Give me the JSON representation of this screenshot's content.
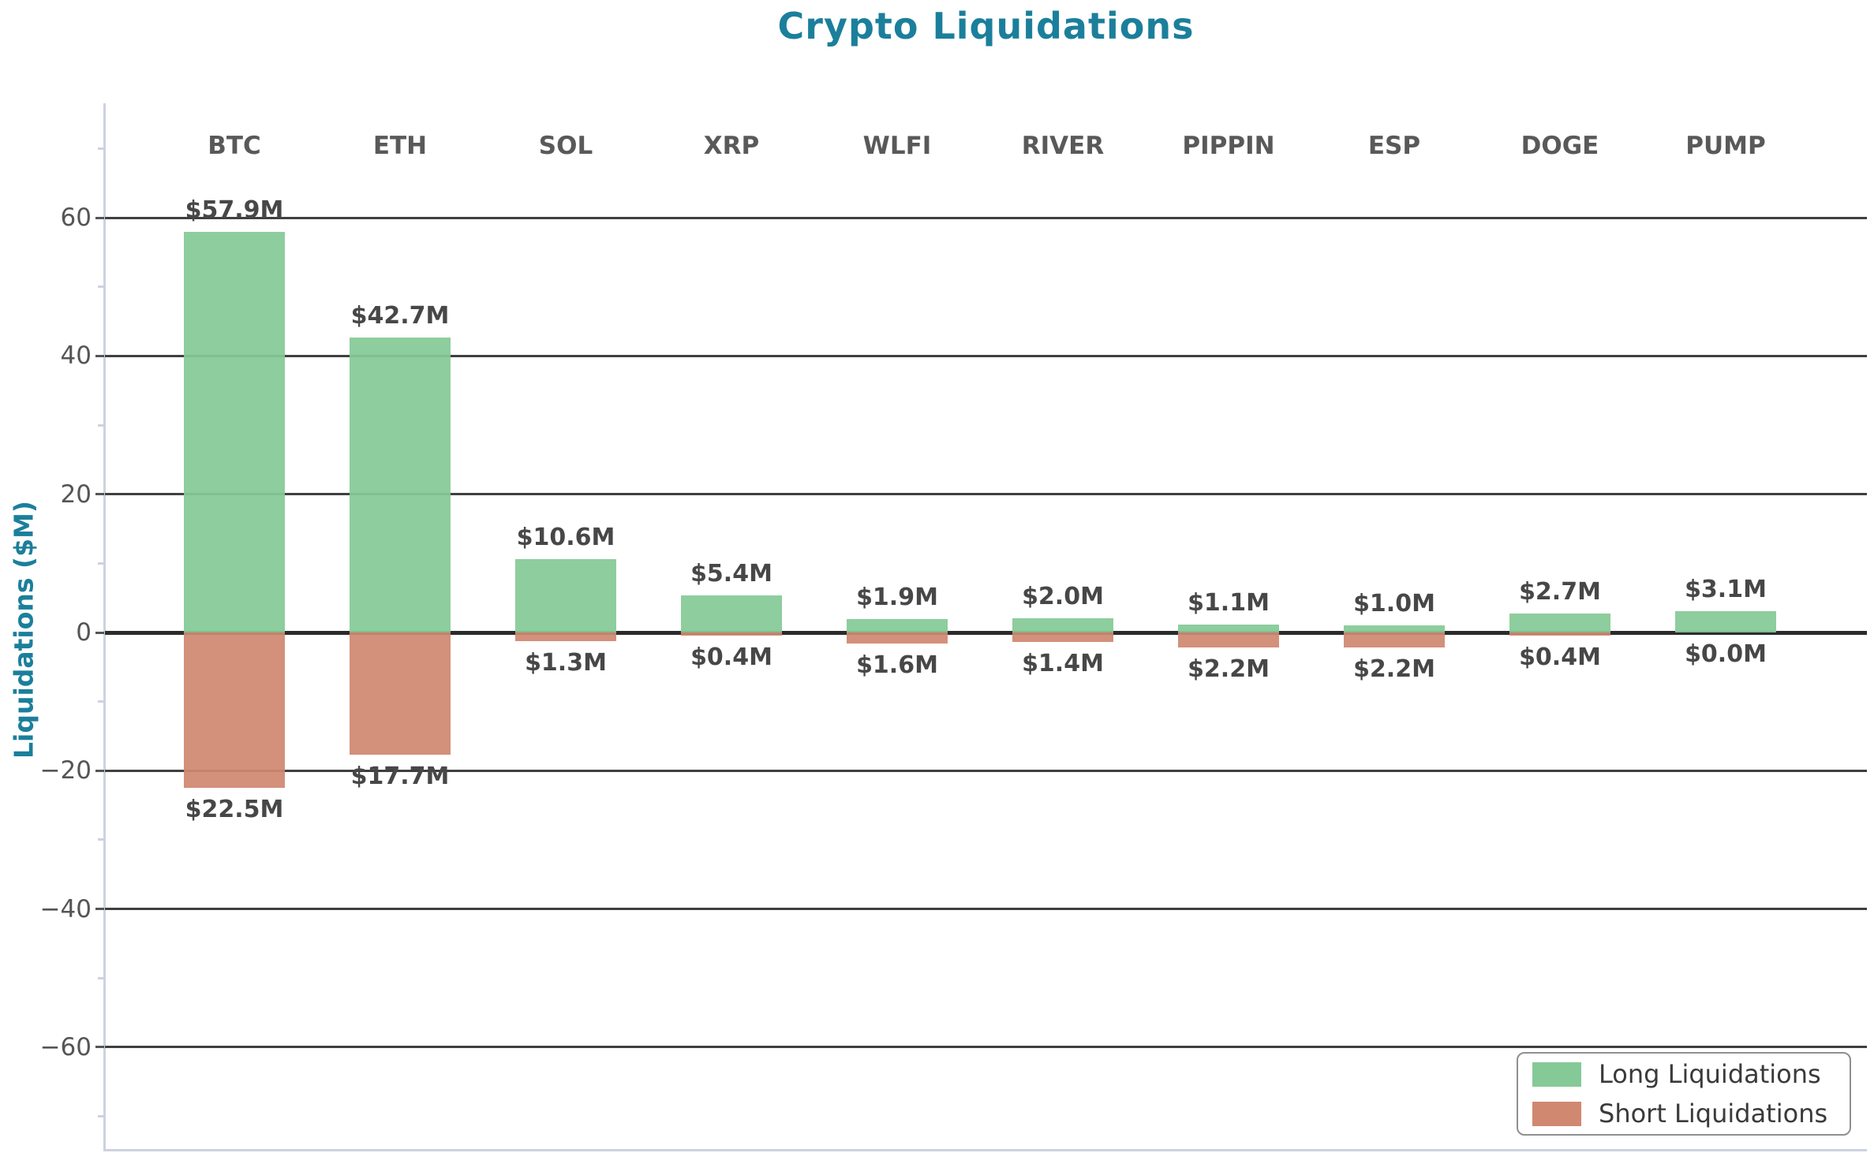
{
  "title": "Crypto Liquidations",
  "ylabel": "Liquidations ($M)",
  "colors": {
    "accent_teal": "#1b7f9b",
    "long_green": "#85c997",
    "short_salmon": "#d08870",
    "gridline": "#3f3f3f",
    "zero_line": "#2b2b2b",
    "axis_spine": "#ccd2e0",
    "label_gray": "#555555"
  },
  "legend": {
    "position": "lower right",
    "long_label": "Long Liquidations",
    "short_label": "Short Liquidations"
  },
  "chart_data": {
    "type": "bar",
    "title": "Crypto Liquidations",
    "xlabel": "",
    "ylabel": "Liquidations ($M)",
    "grid": "horizontal",
    "ylim": [
      -75,
      76.5
    ],
    "yticks": {
      "values": [
        60,
        40,
        20,
        0,
        -20,
        -40,
        -60
      ],
      "labels": [
        "60",
        "40",
        "20",
        "0",
        "−20",
        "−40",
        "−60"
      ]
    },
    "minor_yticks": [
      70,
      50,
      30,
      10,
      -10,
      -30,
      -50,
      -70
    ],
    "categories": [
      "BTC",
      "ETH",
      "SOL",
      "XRP",
      "WLFI",
      "RIVER",
      "PIPPIN",
      "ESP",
      "DOGE",
      "PUMP"
    ],
    "series": [
      {
        "name": "Long Liquidations",
        "direction": "up",
        "color": "#85c997",
        "values": [
          57.9,
          42.7,
          10.6,
          5.4,
          1.9,
          2.0,
          1.1,
          1.0,
          2.7,
          3.1
        ],
        "labels": [
          "$57.9M",
          "$42.7M",
          "$10.6M",
          "$5.4M",
          "$1.9M",
          "$2.0M",
          "$1.1M",
          "$1.0M",
          "$2.7M",
          "$3.1M"
        ]
      },
      {
        "name": "Short Liquidations",
        "direction": "down",
        "color": "#d08870",
        "values": [
          22.5,
          17.7,
          1.3,
          0.4,
          1.6,
          1.4,
          2.2,
          2.2,
          0.4,
          0.0
        ],
        "labels": [
          "$22.5M",
          "$17.7M",
          "$1.3M",
          "$0.4M",
          "$1.6M",
          "$1.4M",
          "$2.2M",
          "$2.2M",
          "$0.4M",
          "$0.0M"
        ]
      }
    ]
  }
}
